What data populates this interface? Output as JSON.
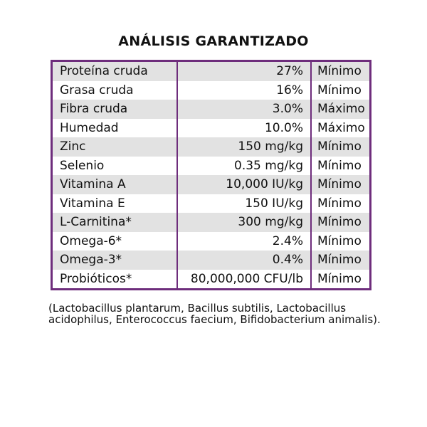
{
  "title": "ANÁLISIS GARANTIZADO",
  "rows": [
    {
      "name": "Proteína cruda",
      "value": "27%",
      "type": "Mínimo"
    },
    {
      "name": "Grasa cruda",
      "value": "16%",
      "type": "Mínimo"
    },
    {
      "name": "Fibra cruda",
      "value": "3.0%",
      "type": "Máximo"
    },
    {
      "name": "Humedad",
      "value": "10.0%",
      "type": "Máximo"
    },
    {
      "name": "Zinc",
      "value": "150 mg/kg",
      "type": "Mínimo"
    },
    {
      "name": "Selenio",
      "value": "0.35 mg/kg",
      "type": "Mínimo"
    },
    {
      "name": "Vitamina A",
      "value": "10,000 IU/kg",
      "type": "Mínimo"
    },
    {
      "name": "Vitamina E",
      "value": "150 IU/kg",
      "type": "Mínimo"
    },
    {
      "name": "L-Carnitina*",
      "value": "300 mg/kg",
      "type": "Mínimo"
    },
    {
      "name": "Omega-6*",
      "value": "2.4%",
      "type": "Mínimo"
    },
    {
      "name": "Omega-3*",
      "value": "0.4%",
      "type": "Mínimo"
    },
    {
      "name": "Probióticos*",
      "value": "80,000,000 CFU/lb",
      "type": "Mínimo"
    }
  ],
  "footnote": "(Lactobacillus plantarum, Bacillus subtilis, Lactobacillus acidophilus, Enterococcus faecium, Bifidobacterium animalis).",
  "colors": {
    "border": "#6e2d7c",
    "stripe": "#e2e2e2"
  }
}
